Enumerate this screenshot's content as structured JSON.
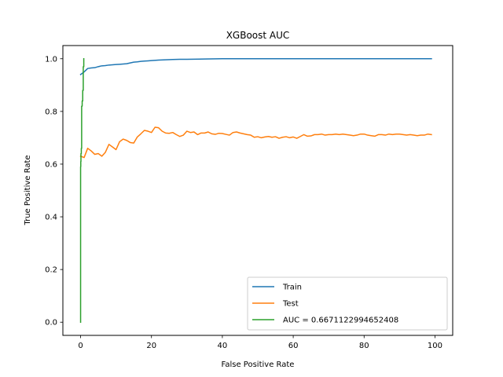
{
  "chart_data": {
    "type": "line",
    "title": "XGBoost AUC",
    "xlabel": "False Positive Rate",
    "ylabel": "True Positive Rate",
    "xlim": [
      -5,
      105
    ],
    "ylim": [
      -0.05,
      1.05
    ],
    "xticks": [
      0,
      20,
      40,
      60,
      80,
      100
    ],
    "yticks": [
      0.0,
      0.2,
      0.4,
      0.6,
      0.8,
      1.0
    ],
    "ytick_labels": [
      "0.0",
      "0.2",
      "0.4",
      "0.6",
      "0.8",
      "1.0"
    ],
    "grid": false,
    "legend_position": "lower-right",
    "series": [
      {
        "name": "Train",
        "color": "#1f77b4",
        "x": [
          0,
          1,
          2,
          3,
          4,
          5,
          6,
          7,
          8,
          9,
          10,
          11,
          12,
          13,
          14,
          15,
          16,
          17,
          18,
          19,
          20,
          22,
          24,
          26,
          28,
          30,
          35,
          40,
          50,
          60,
          70,
          80,
          90,
          99
        ],
        "y": [
          0.94,
          0.95,
          0.963,
          0.965,
          0.966,
          0.97,
          0.973,
          0.974,
          0.976,
          0.977,
          0.978,
          0.979,
          0.98,
          0.981,
          0.984,
          0.987,
          0.988,
          0.99,
          0.991,
          0.992,
          0.993,
          0.995,
          0.996,
          0.997,
          0.998,
          0.998,
          0.999,
          1.0,
          1.0,
          1.0,
          1.0,
          1.0,
          1.0,
          1.0
        ]
      },
      {
        "name": "Test",
        "color": "#ff7f0e",
        "x": [
          0,
          1,
          2,
          3,
          4,
          5,
          6,
          7,
          8,
          9,
          10,
          11,
          12,
          13,
          14,
          15,
          16,
          17,
          18,
          19,
          20,
          21,
          22,
          23,
          24,
          25,
          26,
          27,
          28,
          29,
          30,
          31,
          32,
          33,
          34,
          35,
          36,
          37,
          38,
          39,
          40,
          41,
          42,
          43,
          44,
          45,
          46,
          47,
          48,
          49,
          50,
          51,
          52,
          53,
          54,
          55,
          56,
          57,
          58,
          59,
          60,
          61,
          62,
          63,
          64,
          65,
          66,
          67,
          68,
          69,
          70,
          71,
          72,
          73,
          74,
          75,
          76,
          77,
          78,
          79,
          80,
          81,
          82,
          83,
          84,
          85,
          86,
          87,
          88,
          89,
          90,
          91,
          92,
          93,
          94,
          95,
          96,
          97,
          98,
          99
        ],
        "y": [
          0.63,
          0.625,
          0.66,
          0.65,
          0.637,
          0.64,
          0.63,
          0.645,
          0.675,
          0.665,
          0.655,
          0.685,
          0.695,
          0.69,
          0.682,
          0.68,
          0.703,
          0.715,
          0.728,
          0.725,
          0.72,
          0.74,
          0.738,
          0.725,
          0.718,
          0.717,
          0.72,
          0.712,
          0.705,
          0.71,
          0.725,
          0.72,
          0.722,
          0.712,
          0.718,
          0.718,
          0.722,
          0.715,
          0.713,
          0.717,
          0.716,
          0.713,
          0.71,
          0.72,
          0.722,
          0.718,
          0.715,
          0.712,
          0.71,
          0.702,
          0.704,
          0.7,
          0.703,
          0.705,
          0.702,
          0.704,
          0.698,
          0.702,
          0.704,
          0.7,
          0.703,
          0.698,
          0.705,
          0.712,
          0.706,
          0.707,
          0.712,
          0.712,
          0.714,
          0.71,
          0.712,
          0.712,
          0.714,
          0.712,
          0.714,
          0.712,
          0.71,
          0.708,
          0.71,
          0.714,
          0.714,
          0.71,
          0.708,
          0.706,
          0.712,
          0.712,
          0.71,
          0.714,
          0.712,
          0.714,
          0.714,
          0.712,
          0.71,
          0.712,
          0.71,
          0.708,
          0.71,
          0.71,
          0.714,
          0.712
        ]
      },
      {
        "name": "AUC = 0.6671122994652408",
        "color": "#2ca02c",
        "x": [
          0,
          0,
          0.05,
          0.05,
          0.1,
          0.1,
          0.2,
          0.2,
          0.3,
          0.3,
          0.45,
          0.45,
          0.6,
          0.6,
          0.75,
          0.75,
          0.9,
          0.9
        ],
        "y": [
          0.0,
          0.59,
          0.59,
          0.61,
          0.61,
          0.64,
          0.64,
          0.66,
          0.66,
          0.82,
          0.82,
          0.84,
          0.84,
          0.88,
          0.88,
          0.97,
          0.97,
          1.0
        ]
      }
    ]
  }
}
